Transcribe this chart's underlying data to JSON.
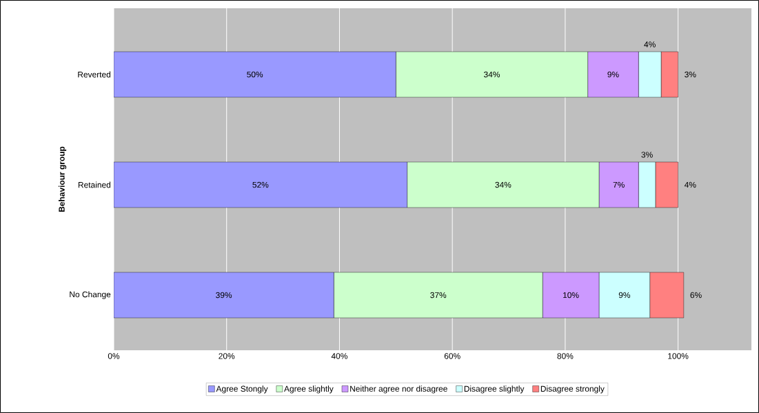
{
  "chart_data": {
    "type": "bar",
    "orientation": "horizontal",
    "stacked": true,
    "ylabel": "Behaviour group",
    "categories": [
      "Reverted",
      "Retained",
      "No Change"
    ],
    "series": [
      {
        "name": "Agree Stongly",
        "color": "#9999ff",
        "values": [
          50,
          52,
          39
        ],
        "value_labels": [
          "50%",
          "52%",
          "39%"
        ]
      },
      {
        "name": "Agree slightly",
        "color": "#ccffcc",
        "values": [
          34,
          34,
          37
        ],
        "value_labels": [
          "34%",
          "34%",
          "37%"
        ]
      },
      {
        "name": "Neither agree nor disagree",
        "color": "#cc99ff",
        "values": [
          9,
          7,
          10
        ],
        "value_labels": [
          "9%",
          "7%",
          "10%"
        ]
      },
      {
        "name": "Disagree slightly",
        "color": "#ccffff",
        "values": [
          4,
          3,
          9
        ],
        "value_labels": [
          "4%",
          "3%",
          "9%"
        ]
      },
      {
        "name": "Disagree strongly",
        "color": "#ff8080",
        "values": [
          3,
          4,
          6
        ],
        "value_labels": [
          "3%",
          "4%",
          "6%"
        ]
      }
    ],
    "xlim": [
      0,
      113
    ],
    "xticks": [
      {
        "value": 0,
        "label": "0%"
      },
      {
        "value": 20,
        "label": "20%"
      },
      {
        "value": 40,
        "label": "40%"
      },
      {
        "value": 60,
        "label": "60%"
      },
      {
        "value": 80,
        "label": "80%"
      },
      {
        "value": 100,
        "label": "100%"
      }
    ],
    "grid": "x",
    "legend": "bottom"
  }
}
